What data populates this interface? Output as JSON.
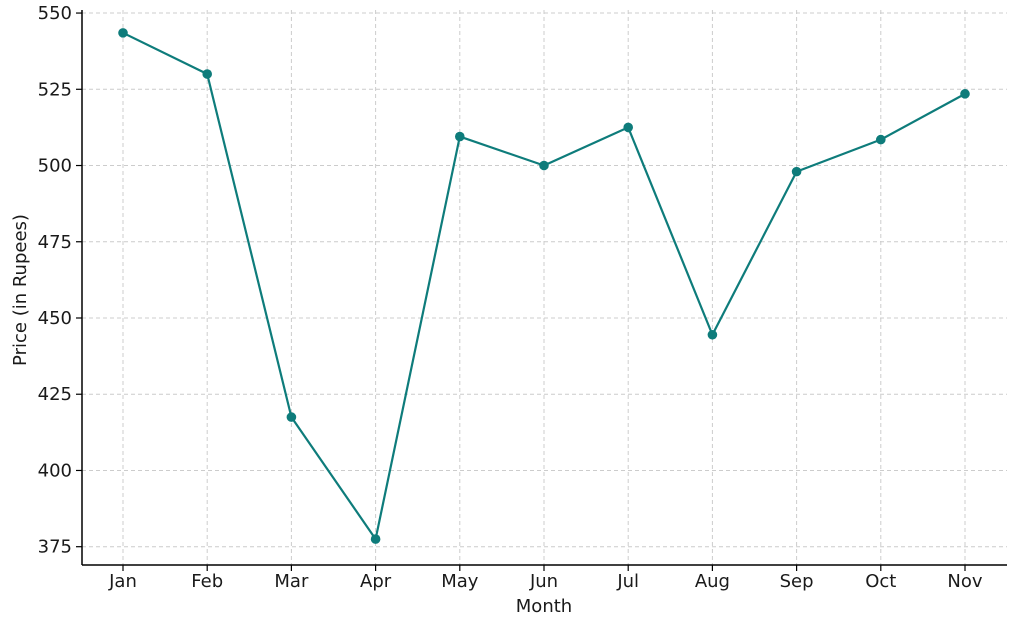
{
  "chart_data": {
    "type": "line",
    "title": "",
    "xlabel": "Month",
    "ylabel": "Price (in Rupees)",
    "categories": [
      "Jan",
      "Feb",
      "Mar",
      "Apr",
      "May",
      "Jun",
      "Jul",
      "Aug",
      "Sep",
      "Oct",
      "Nov"
    ],
    "series": [
      {
        "values": [
          543.5,
          530,
          417.5,
          377.5,
          509.5,
          500,
          512.5,
          444.5,
          498,
          508.5,
          523.5
        ],
        "color": "#0e7c7b",
        "marker": "circle"
      }
    ],
    "ylim": [
      369,
      551
    ],
    "yticks": [
      375,
      400,
      425,
      450,
      475,
      500,
      525,
      550
    ],
    "grid": true,
    "legend": "none"
  }
}
